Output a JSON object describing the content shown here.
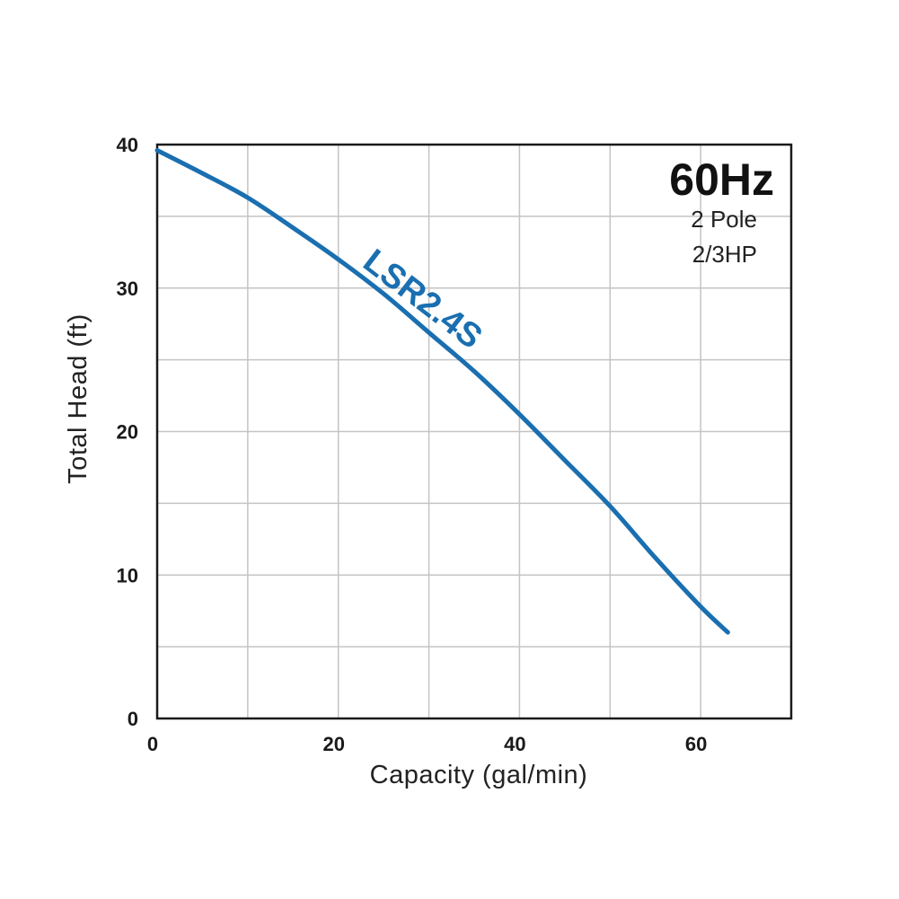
{
  "chart_data": {
    "type": "line",
    "xlabel": "Capacity  (gal/min)",
    "ylabel": "Total Head  (ft)",
    "xlim": [
      0,
      70
    ],
    "ylim": [
      0,
      40
    ],
    "x_ticks": [
      0,
      20,
      40,
      60
    ],
    "y_ticks": [
      0,
      10,
      20,
      30,
      40
    ],
    "grid": true,
    "grid_step_x": 10,
    "grid_step_y": 5,
    "annotations": {
      "frequency": "60Hz",
      "poles": "2 Pole",
      "power": "2/3HP"
    },
    "series": [
      {
        "name": "LSR2.4S",
        "color": "#1a6fb0",
        "x": [
          0,
          5,
          10,
          15,
          20,
          25,
          30,
          35,
          40,
          45,
          50,
          55,
          60,
          63
        ],
        "y": [
          39.6,
          38.0,
          36.3,
          34.2,
          32.0,
          29.6,
          26.9,
          24.2,
          21.2,
          18.0,
          14.8,
          11.2,
          7.8,
          6.0
        ]
      }
    ]
  }
}
